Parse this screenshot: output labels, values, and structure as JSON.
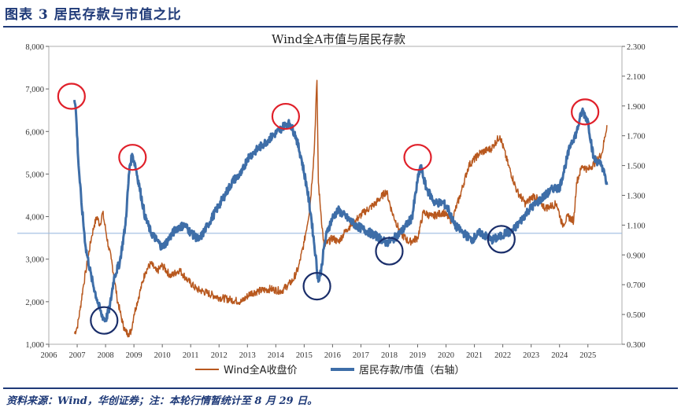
{
  "header": {
    "figure_title": "图表 3   居民存款与市值之比"
  },
  "footer": {
    "source": "资料来源：Wind，华创证券；注：本轮行情暂统计至 8 月 29 日。"
  },
  "colors": {
    "left_series": "#b8581e",
    "right_series": "#3e6ea8",
    "ref_line": "#9dbbe0",
    "peak_marker": "#e0202a",
    "trough_marker": "#1a2e6a",
    "title": "#1f3a78"
  },
  "chart_data": {
    "type": "line",
    "title": "Wind全A市值与居民存款",
    "x_ticks": [
      "2006",
      "2007",
      "2008",
      "2009",
      "2010",
      "2011",
      "2012",
      "2013",
      "2014",
      "2015",
      "2016",
      "2017",
      "2018",
      "2019",
      "2020",
      "2021",
      "2022",
      "2023",
      "2024",
      "2025"
    ],
    "xlim": [
      2006,
      2026.2
    ],
    "y_left": {
      "lim": [
        1000,
        8000
      ],
      "ticks": [
        "1,000",
        "2,000",
        "3,000",
        "4,000",
        "5,000",
        "6,000",
        "7,000",
        "8,000"
      ]
    },
    "y_right": {
      "lim": [
        0.3,
        2.3
      ],
      "ticks": [
        "0.300",
        "0.500",
        "0.700",
        "0.900",
        "1.100",
        "1.300",
        "1.500",
        "1.700",
        "1.900",
        "2.100",
        "2.300"
      ]
    },
    "reference_line": {
      "axis": "right",
      "value": 1.045
    },
    "legend": {
      "position": "bottom",
      "entries": [
        "Wind全A收盘价",
        "居民存款/市值（右轴）"
      ]
    },
    "series": [
      {
        "name": "Wind全A收盘价",
        "axis": "left",
        "x": [
          2006.9,
          2007.0,
          2007.1,
          2007.2,
          2007.3,
          2007.4,
          2007.5,
          2007.6,
          2007.7,
          2007.8,
          2007.9,
          2008.0,
          2008.1,
          2008.2,
          2008.3,
          2008.4,
          2008.5,
          2008.6,
          2008.7,
          2008.8,
          2008.9,
          2009.0,
          2009.2,
          2009.4,
          2009.6,
          2009.8,
          2010.0,
          2010.3,
          2010.6,
          2010.9,
          2011.2,
          2011.6,
          2012.0,
          2012.4,
          2012.8,
          2013.1,
          2013.4,
          2013.8,
          2014.2,
          2014.6,
          2014.8,
          2015.0,
          2015.2,
          2015.35,
          2015.45,
          2015.5,
          2015.6,
          2015.7,
          2016.0,
          2016.2,
          2016.5,
          2016.8,
          2017.1,
          2017.5,
          2017.9,
          2018.1,
          2018.4,
          2018.7,
          2019.0,
          2019.2,
          2019.5,
          2019.9,
          2020.2,
          2020.5,
          2020.8,
          2021.2,
          2021.6,
          2021.9,
          2022.2,
          2022.5,
          2022.8,
          2023.1,
          2023.5,
          2023.9,
          2024.1,
          2024.3,
          2024.5,
          2024.6,
          2024.8,
          2025.0,
          2025.3,
          2025.5,
          2025.67
        ],
        "values": [
          1250,
          1400,
          1800,
          2300,
          2700,
          3100,
          3500,
          3800,
          4000,
          3800,
          4100,
          3700,
          3300,
          3000,
          2600,
          2100,
          1800,
          1500,
          1300,
          1250,
          1300,
          1700,
          2200,
          2700,
          2900,
          2700,
          2850,
          2600,
          2750,
          2500,
          2300,
          2200,
          2100,
          2050,
          2000,
          2200,
          2250,
          2300,
          2250,
          2500,
          2800,
          3400,
          4200,
          5500,
          7200,
          4800,
          4000,
          3300,
          3500,
          3400,
          3700,
          3900,
          4100,
          4300,
          4600,
          4100,
          3600,
          3400,
          3500,
          4100,
          4000,
          4100,
          3900,
          4500,
          5200,
          5500,
          5600,
          5900,
          5200,
          4600,
          4300,
          4500,
          4200,
          4300,
          3800,
          4000,
          3900,
          4800,
          5200,
          5100,
          5300,
          5500,
          6150
        ]
      },
      {
        "name": "居民存款/市值（右轴）",
        "axis": "right",
        "x": [
          2006.9,
          2006.95,
          2007.05,
          2007.15,
          2007.3,
          2007.5,
          2007.7,
          2007.85,
          2008.0,
          2008.15,
          2008.3,
          2008.5,
          2008.7,
          2008.85,
          2008.95,
          2009.05,
          2009.2,
          2009.4,
          2009.6,
          2009.8,
          2010.0,
          2010.2,
          2010.5,
          2010.8,
          2011.0,
          2011.3,
          2011.6,
          2011.9,
          2012.2,
          2012.5,
          2012.8,
          2013.0,
          2013.3,
          2013.6,
          2013.9,
          2014.2,
          2014.35,
          2014.5,
          2014.7,
          2014.9,
          2015.1,
          2015.25,
          2015.4,
          2015.5,
          2015.6,
          2015.7,
          2015.8,
          2016.0,
          2016.2,
          2016.5,
          2016.8,
          2017.0,
          2017.3,
          2017.6,
          2017.9,
          2018.1,
          2018.4,
          2018.8,
          2019.0,
          2019.1,
          2019.3,
          2019.6,
          2019.9,
          2020.1,
          2020.3,
          2020.6,
          2020.9,
          2021.2,
          2021.6,
          2021.9,
          2022.1,
          2022.3,
          2022.6,
          2022.9,
          2023.2,
          2023.5,
          2023.8,
          2024.0,
          2024.2,
          2024.4,
          2024.6,
          2024.7,
          2024.8,
          2025.0,
          2025.2,
          2025.5,
          2025.67
        ],
        "values": [
          1.94,
          1.88,
          1.5,
          1.25,
          0.95,
          0.75,
          0.6,
          0.5,
          0.46,
          0.55,
          0.75,
          0.85,
          1.1,
          1.5,
          1.57,
          1.5,
          1.35,
          1.15,
          1.05,
          1.0,
          0.95,
          1.0,
          1.08,
          1.1,
          1.05,
          1.0,
          1.1,
          1.2,
          1.3,
          1.4,
          1.45,
          1.55,
          1.6,
          1.65,
          1.7,
          1.75,
          1.78,
          1.78,
          1.7,
          1.55,
          1.35,
          1.15,
          0.9,
          0.72,
          0.8,
          0.95,
          1.05,
          1.15,
          1.2,
          1.15,
          1.1,
          1.08,
          1.05,
          1.02,
          0.98,
          1.0,
          1.05,
          1.15,
          1.4,
          1.5,
          1.35,
          1.25,
          1.25,
          1.2,
          1.1,
          1.05,
          1.0,
          1.05,
          1.0,
          1.02,
          1.05,
          1.05,
          1.12,
          1.2,
          1.25,
          1.3,
          1.35,
          1.35,
          1.5,
          1.65,
          1.72,
          1.8,
          1.87,
          1.8,
          1.55,
          1.5,
          1.37
        ]
      }
    ],
    "peak_markers": [
      {
        "x": 2006.8,
        "y_right": 1.965
      },
      {
        "x": 2008.95,
        "y_right": 1.555
      },
      {
        "x": 2014.35,
        "y_right": 1.83
      },
      {
        "x": 2019.0,
        "y_right": 1.555
      },
      {
        "x": 2024.9,
        "y_right": 1.86
      }
    ],
    "trough_markers": [
      {
        "x": 2007.95,
        "y_right": 0.46
      },
      {
        "x": 2015.45,
        "y_right": 0.69
      },
      {
        "x": 2018.0,
        "y_right": 0.925
      },
      {
        "x": 2021.95,
        "y_right": 1.005
      }
    ]
  }
}
